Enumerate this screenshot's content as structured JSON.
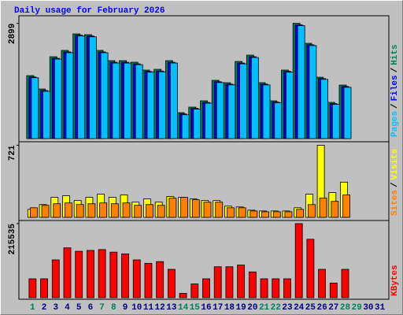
{
  "chart_data": [
    {
      "type": "bar",
      "title": "Daily usage for February 2026",
      "legend_separator": "/",
      "ylim": [
        0,
        3050
      ],
      "yticks": [
        2899
      ],
      "series": [
        {
          "name": "Hits",
          "color": "#00805c",
          "values": [
            1584,
            1247,
            2059,
            2218,
            2633,
            2614,
            2218,
            1960,
            1960,
            1921,
            1723,
            1742,
            1960,
            653,
            792,
            950,
            1465,
            1406,
            1940,
            2099,
            1406,
            950,
            1723,
            2899,
            2396,
            1544,
            911,
            1346,
            null,
            null,
            null
          ]
        },
        {
          "name": "Files",
          "color": "#0000ff",
          "values": [
            1550,
            1210,
            2020,
            2180,
            2600,
            2580,
            2180,
            1920,
            1920,
            1880,
            1690,
            1700,
            1920,
            620,
            760,
            910,
            1430,
            1370,
            1900,
            2060,
            1370,
            920,
            1690,
            2860,
            2360,
            1510,
            880,
            1310,
            null,
            null,
            null
          ]
        },
        {
          "name": "Pages",
          "color": "#00c0ff",
          "values": [
            1530,
            1190,
            2000,
            2160,
            2580,
            2560,
            2160,
            1900,
            1900,
            1860,
            1670,
            1680,
            1900,
            600,
            740,
            890,
            1410,
            1350,
            1880,
            2040,
            1350,
            900,
            1670,
            2840,
            2340,
            1490,
            860,
            1290,
            null,
            null,
            null
          ]
        }
      ]
    },
    {
      "type": "bar",
      "legend_separator": "/",
      "ylim": [
        0,
        740
      ],
      "yticks": [
        721
      ],
      "series": [
        {
          "name": "Visits",
          "color": "#ffff00",
          "values": [
            80,
            128,
            200,
            216,
            168,
            200,
            232,
            200,
            224,
            152,
            184,
            152,
            208,
            200,
            184,
            168,
            168,
            112,
            104,
            72,
            64,
            64,
            64,
            96,
            232,
            721,
            248,
            352,
            null,
            null,
            null
          ]
        },
        {
          "name": "Sites",
          "color": "#ff8000",
          "values": [
            96,
            120,
            136,
            144,
            128,
            136,
            144,
            136,
            144,
            120,
            128,
            120,
            192,
            200,
            176,
            152,
            152,
            96,
            96,
            64,
            56,
            56,
            56,
            80,
            128,
            192,
            160,
            224,
            null,
            null,
            null
          ]
        }
      ]
    },
    {
      "type": "bar",
      "ylim": [
        0,
        220000
      ],
      "yticks": [
        215535
      ],
      "categories": [
        "1",
        "2",
        "3",
        "4",
        "5",
        "6",
        "7",
        "8",
        "9",
        "10",
        "11",
        "12",
        "13",
        "14",
        "15",
        "16",
        "17",
        "18",
        "19",
        "20",
        "21",
        "22",
        "23",
        "24",
        "25",
        "26",
        "27",
        "28",
        "29",
        "30",
        "31"
      ],
      "category_colors": [
        "#00805c",
        "#000080",
        "#000080",
        "#000080",
        "#000080",
        "#000080",
        "#00805c",
        "#00805c",
        "#000080",
        "#000080",
        "#000080",
        "#000080",
        "#000080",
        "#00805c",
        "#00805c",
        "#000080",
        "#000080",
        "#000080",
        "#000080",
        "#000080",
        "#00805c",
        "#00805c",
        "#000080",
        "#000080",
        "#000080",
        "#000080",
        "#000080",
        "#00805c",
        "#00805c",
        "#000080",
        "#000080"
      ],
      "series": [
        {
          "name": "KBytes",
          "color": "#ff0000",
          "values": [
            55000,
            55000,
            110000,
            145000,
            135000,
            137500,
            140000,
            132500,
            127500,
            110000,
            100000,
            105000,
            82500,
            12500,
            40000,
            55000,
            90000,
            90000,
            95000,
            75000,
            55000,
            55000,
            55000,
            215535,
            170000,
            82500,
            42500,
            82500,
            null,
            null,
            null
          ]
        }
      ]
    }
  ]
}
